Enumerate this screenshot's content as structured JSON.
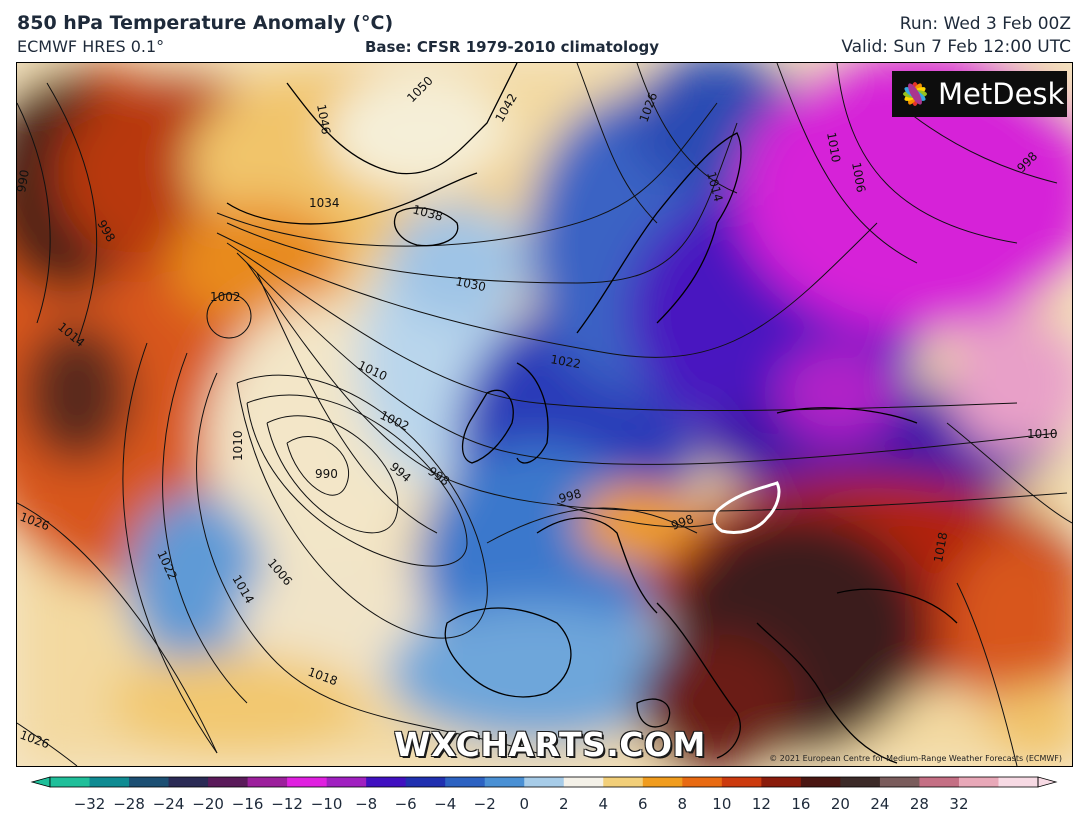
{
  "header": {
    "title": "850 hPa Temperature Anomaly (°C)",
    "model": "ECMWF HRES 0.1°",
    "base": "Base: CFSR 1979-2010 climatology",
    "run": "Run: Wed 3 Feb 00Z",
    "valid": "Valid: Sun 7 Feb 12:00 UTC"
  },
  "logo": {
    "text": "MetDesk",
    "icon": "metdesk-flower-icon"
  },
  "watermark": "WXCHARTS.COM",
  "credit": "© 2021 European Centre for Medium-Range Weather Forecasts (ECMWF)",
  "colorbar": {
    "ticks": [
      "−32",
      "−28",
      "−24",
      "−20",
      "−16",
      "−12",
      "−10",
      "−8",
      "−6",
      "−4",
      "−2",
      "0",
      "2",
      "4",
      "6",
      "8",
      "10",
      "12",
      "16",
      "20",
      "24",
      "28",
      "32"
    ],
    "colors": [
      "#1fbf9a",
      "#0f8b92",
      "#1c4f73",
      "#2a2a55",
      "#5a1a5a",
      "#9c1f9c",
      "#e020e0",
      "#a020c0",
      "#4010c0",
      "#2030b0",
      "#2c62c2",
      "#4a90d4",
      "#a7cce8",
      "#f4f1e8",
      "#f2cf79",
      "#f09c1e",
      "#e86a12",
      "#cc3a0e",
      "#8a1c0c",
      "#4a1612",
      "#3c2a28",
      "#7a5c5c",
      "#c46f84",
      "#e8a8b8",
      "#f7dae4"
    ]
  },
  "isobar_labels": [
    "1046",
    "1050",
    "1042",
    "1034",
    "1038",
    "1030",
    "1026",
    "1022",
    "1014",
    "1010",
    "1006",
    "998",
    "1002",
    "1010",
    "990",
    "994",
    "998",
    "1002",
    "1006",
    "1010",
    "1014",
    "1018",
    "1022",
    "1026",
    "1026",
    "998",
    "998",
    "1010",
    "1018",
    "1014",
    "990",
    "998"
  ]
}
